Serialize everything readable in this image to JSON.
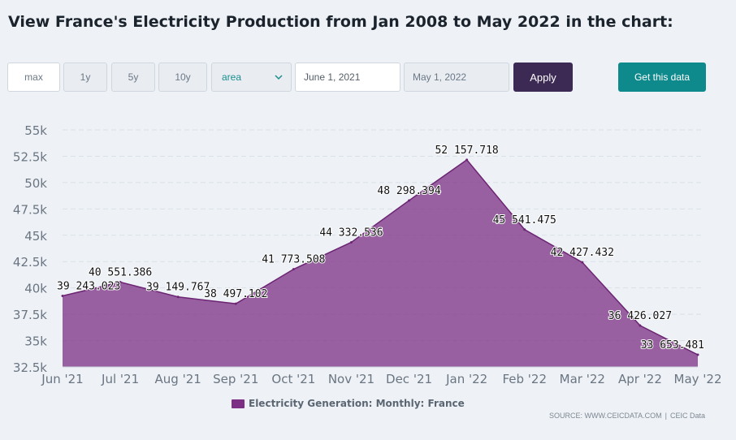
{
  "page": {
    "title": "View France's Electricity Production from Jan 2008 to May 2022 in the chart:"
  },
  "controls": {
    "range_buttons": [
      "max",
      "1y",
      "5y",
      "10y"
    ],
    "chart_type_value": "area",
    "start_date": "June 1, 2021",
    "end_date": "May 1, 2022",
    "apply_label": "Apply",
    "get_data_label": "Get this data"
  },
  "colors": {
    "area_fill": "#7c2f84",
    "area_line": "#6c2573",
    "apply_bg": "#3d2a54",
    "get_data_bg": "#0e8a8c",
    "active_accent": "#1a8d8d"
  },
  "chart_data": {
    "type": "area",
    "title": "",
    "xlabel": "",
    "ylabel": "",
    "categories": [
      "Jun '21",
      "Jul '21",
      "Aug '21",
      "Sep '21",
      "Oct '21",
      "Nov '21",
      "Dec '21",
      "Jan '22",
      "Feb '22",
      "Mar '22",
      "Apr '22",
      "May '22"
    ],
    "series": [
      {
        "name": "Electricity Generation: Monthly: France",
        "values": [
          39243.023,
          40551.386,
          39149.767,
          38497.102,
          41773.508,
          44332.536,
          48298.394,
          52157.718,
          45541.475,
          42427.432,
          36426.027,
          33653.481
        ],
        "labels": [
          "39 243.023",
          "40 551.386",
          "39 149.767",
          "38 497.102",
          "41 773.508",
          "44 332.536",
          "48 298.394",
          "52 157.718",
          "45 541.475",
          "42 427.432",
          "36 426.027",
          "33 653.481"
        ]
      }
    ],
    "ylim": [
      32500,
      55000
    ],
    "yticks": [
      32500,
      35000,
      37500,
      40000,
      42500,
      45000,
      47500,
      50000,
      52500,
      55000
    ],
    "ytick_labels": [
      "32.5k",
      "35k",
      "37.5k",
      "40k",
      "42.5k",
      "45k",
      "47.5k",
      "50k",
      "52.5k",
      "55k"
    ],
    "grid": true,
    "legend_position": "bottom-center"
  },
  "footer": {
    "source_text": "SOURCE: WWW.CEICDATA.COM",
    "separator": "|",
    "provider": "CEIC Data"
  }
}
